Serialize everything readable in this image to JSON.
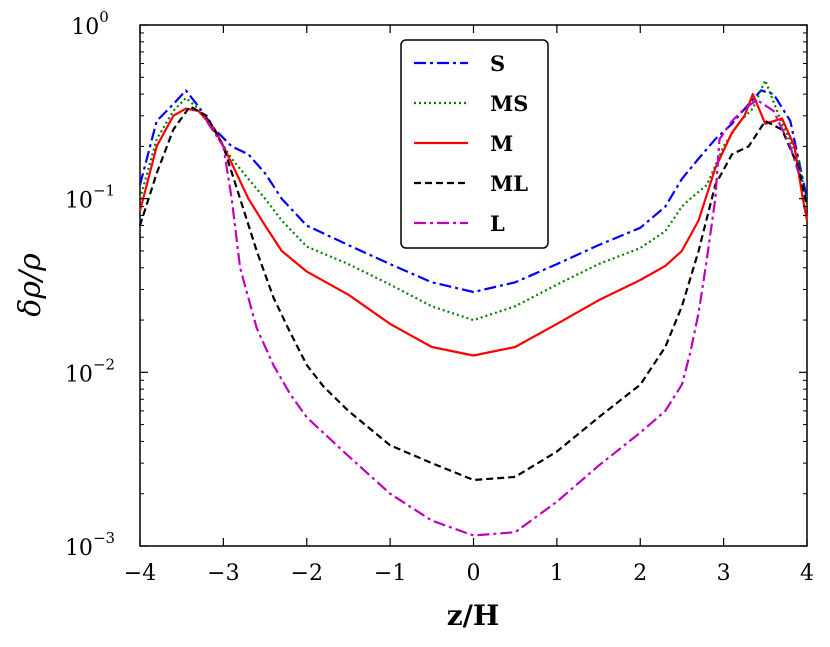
{
  "chart_data": {
    "type": "line",
    "title": "",
    "xlabel": "z/H",
    "ylabel": "δρ/ρ",
    "xlim": [
      -4,
      4
    ],
    "ylim": [
      0.001,
      1
    ],
    "yscale": "log",
    "legend_position": "top-center",
    "x_ticks": [
      -4,
      -3,
      -2,
      -1,
      0,
      1,
      2,
      3,
      4
    ],
    "x_tick_labels": [
      "−4",
      "−3",
      "−2",
      "−1",
      "0",
      "1",
      "2",
      "3",
      "4"
    ],
    "y_ticks": [
      {
        "value": 1,
        "base": "10",
        "exp": "0"
      },
      {
        "value": 0.1,
        "base": "10",
        "exp": "−1"
      },
      {
        "value": 0.01,
        "base": "10",
        "exp": "−2"
      },
      {
        "value": 0.001,
        "base": "10",
        "exp": "−3"
      }
    ],
    "series": [
      {
        "name": "S",
        "color": "#0000ff",
        "dash": "12 4 3 4",
        "x": [
          -4,
          -3.8,
          -3.6,
          -3.45,
          -3.3,
          -3.1,
          -2.9,
          -2.7,
          -2.5,
          -2.3,
          -2.0,
          -1.5,
          -1.0,
          -0.5,
          0,
          0.5,
          1.0,
          1.5,
          2.0,
          2.3,
          2.5,
          2.7,
          2.9,
          3.1,
          3.3,
          3.45,
          3.6,
          3.8,
          4
        ],
        "y": [
          0.12,
          0.28,
          0.35,
          0.42,
          0.34,
          0.25,
          0.2,
          0.18,
          0.14,
          0.1,
          0.07,
          0.054,
          0.042,
          0.033,
          0.029,
          0.033,
          0.042,
          0.054,
          0.068,
          0.09,
          0.13,
          0.17,
          0.22,
          0.27,
          0.35,
          0.42,
          0.4,
          0.28,
          0.1
        ]
      },
      {
        "name": "MS",
        "color": "#008000",
        "dash": "2 3",
        "x": [
          -4,
          -3.8,
          -3.6,
          -3.45,
          -3.3,
          -3.1,
          -2.9,
          -2.7,
          -2.5,
          -2.3,
          -2.0,
          -1.5,
          -1.0,
          -0.5,
          0,
          0.5,
          1.0,
          1.5,
          2.0,
          2.3,
          2.5,
          2.6,
          2.8,
          3.0,
          3.2,
          3.35,
          3.5,
          3.7,
          3.9,
          4
        ],
        "y": [
          0.1,
          0.22,
          0.32,
          0.38,
          0.33,
          0.24,
          0.17,
          0.13,
          0.1,
          0.075,
          0.053,
          0.042,
          0.032,
          0.024,
          0.02,
          0.024,
          0.032,
          0.042,
          0.052,
          0.065,
          0.09,
          0.1,
          0.12,
          0.2,
          0.28,
          0.33,
          0.48,
          0.27,
          0.17,
          0.09
        ]
      },
      {
        "name": "M",
        "color": "#ff0000",
        "dash": "",
        "x": [
          -4,
          -3.8,
          -3.6,
          -3.45,
          -3.3,
          -3.1,
          -2.9,
          -2.7,
          -2.5,
          -2.3,
          -2.0,
          -1.5,
          -1.0,
          -0.5,
          0,
          0.5,
          1.0,
          1.5,
          2.0,
          2.3,
          2.5,
          2.7,
          2.9,
          3.1,
          3.25,
          3.35,
          3.5,
          3.7,
          3.85,
          3.95,
          4
        ],
        "y": [
          0.085,
          0.2,
          0.3,
          0.33,
          0.32,
          0.25,
          0.16,
          0.1,
          0.07,
          0.05,
          0.038,
          0.028,
          0.019,
          0.014,
          0.0125,
          0.014,
          0.019,
          0.026,
          0.034,
          0.041,
          0.05,
          0.075,
          0.15,
          0.24,
          0.3,
          0.4,
          0.27,
          0.29,
          0.2,
          0.1,
          0.075
        ]
      },
      {
        "name": "ML",
        "color": "#000000",
        "dash": "7 4",
        "x": [
          -4,
          -3.8,
          -3.6,
          -3.4,
          -3.2,
          -3.0,
          -2.8,
          -2.6,
          -2.4,
          -2.2,
          -2.0,
          -1.8,
          -1.5,
          -1.0,
          -0.5,
          0,
          0.5,
          1.0,
          1.5,
          2.0,
          2.3,
          2.5,
          2.7,
          2.9,
          3.1,
          3.3,
          3.5,
          3.7,
          3.9,
          4
        ],
        "y": [
          0.07,
          0.14,
          0.25,
          0.34,
          0.3,
          0.2,
          0.1,
          0.05,
          0.027,
          0.017,
          0.011,
          0.0083,
          0.006,
          0.0038,
          0.003,
          0.0024,
          0.0025,
          0.0035,
          0.0055,
          0.0085,
          0.014,
          0.024,
          0.05,
          0.12,
          0.18,
          0.2,
          0.28,
          0.25,
          0.15,
          0.09
        ]
      },
      {
        "name": "L",
        "color": "#bf00bf",
        "dash": "12 4 3 4",
        "x": [
          -3.2,
          -3.0,
          -2.9,
          -2.8,
          -2.6,
          -2.4,
          -2.2,
          -2.0,
          -1.5,
          -1.0,
          -0.5,
          0,
          0.5,
          1.0,
          1.5,
          2.0,
          2.3,
          2.5,
          2.6,
          2.7,
          2.8,
          2.9,
          2.95,
          3.1,
          3.25,
          3.4,
          3.6,
          3.8,
          3.9
        ],
        "y": [
          0.28,
          0.2,
          0.1,
          0.04,
          0.018,
          0.011,
          0.0075,
          0.0055,
          0.0033,
          0.002,
          0.0014,
          0.00115,
          0.0012,
          0.0018,
          0.0029,
          0.0045,
          0.006,
          0.0085,
          0.013,
          0.022,
          0.045,
          0.1,
          0.22,
          0.28,
          0.33,
          0.37,
          0.32,
          0.2,
          0.14
        ]
      }
    ]
  }
}
